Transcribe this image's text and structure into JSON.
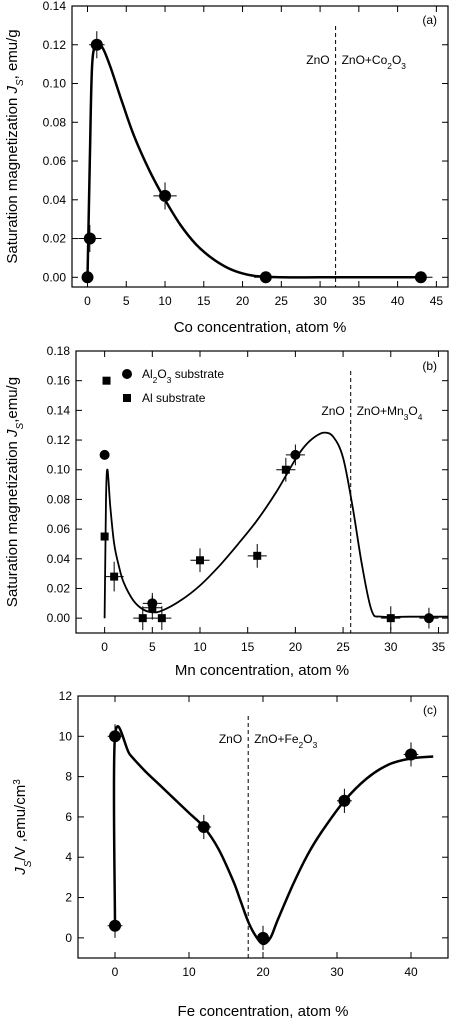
{
  "chart_data": [
    {
      "panel_label": "(a)",
      "type": "scatter",
      "xlabel": "Co concentration, atom %",
      "ylabel": {
        "main": "Saturation magnetization ",
        "sym": "J",
        "sub": "S",
        "tail": ", emu/g"
      },
      "xlim": [
        -2,
        46.5
      ],
      "ylim": [
        -0.005,
        0.14
      ],
      "xticks": [
        0,
        5,
        10,
        15,
        20,
        25,
        30,
        35,
        40,
        45
      ],
      "yticks": [
        "0.00",
        "0.02",
        "0.04",
        "0.06",
        "0.08",
        "0.10",
        "0.12",
        "0.14"
      ],
      "ytick_values": [
        0,
        0.02,
        0.04,
        0.06,
        0.08,
        0.1,
        0.12,
        0.14
      ],
      "divider_x": 32,
      "phase_left": "ZnO",
      "phase_right": {
        "main": "ZnO+Co",
        "sub1": "2",
        "mid": "O",
        "sub2": "3"
      },
      "series": [
        {
          "marker": "circle",
          "x": [
            0,
            0.3,
            1.2,
            10,
            23,
            43
          ],
          "y": [
            0.0,
            0.02,
            0.12,
            0.042,
            0.0,
            0.0
          ],
          "xerr": [
            0,
            1.5,
            1,
            1.5,
            1.5,
            1.5
          ],
          "yerr": [
            0,
            0.007,
            0.007,
            0.007,
            0,
            0
          ]
        }
      ],
      "fit_curve": {
        "x": [
          0,
          0.3,
          0.6,
          1.2,
          2,
          3,
          4.5,
          6,
          8,
          10,
          12,
          14,
          16,
          18,
          20,
          22,
          25,
          30,
          35,
          40,
          43
        ],
        "y": [
          0.0,
          0.06,
          0.11,
          0.12,
          0.118,
          0.108,
          0.09,
          0.073,
          0.055,
          0.04,
          0.027,
          0.017,
          0.01,
          0.005,
          0.002,
          0.0005,
          0.0,
          0.0,
          0.0,
          0.0,
          0.0
        ]
      }
    },
    {
      "panel_label": "(b)",
      "type": "scatter",
      "xlabel": "Mn concentration, atom %",
      "ylabel": {
        "main": "Saturation magnetization ",
        "sym": "J",
        "sub": "S",
        "tail": ",emu/g"
      },
      "xlim": [
        -3,
        36
      ],
      "ylim": [
        -0.01,
        0.18
      ],
      "xticks": [
        0,
        5,
        10,
        15,
        20,
        25,
        30,
        35
      ],
      "yticks": [
        "0.00",
        "0.02",
        "0.04",
        "0.06",
        "0.08",
        "0.10",
        "0.12",
        "0.14",
        "0.16",
        "0.18"
      ],
      "ytick_values": [
        0,
        0.02,
        0.04,
        0.06,
        0.08,
        0.1,
        0.12,
        0.14,
        0.16,
        0.18
      ],
      "divider_x": 25.8,
      "phase_left": "ZnO",
      "phase_right": {
        "main": "ZnO+Mn",
        "sub1": "3",
        "mid": "O",
        "sub2": "4"
      },
      "legend": [
        {
          "marker": "circle",
          "main": "Al",
          "sub1": "2",
          "mid": "O",
          "sub2": "3",
          "tail": " substrate"
        },
        {
          "marker": "square",
          "main": "Al substrate",
          "sub1": "",
          "mid": "",
          "sub2": "",
          "tail": ""
        }
      ],
      "series": [
        {
          "marker": "circle",
          "x": [
            0,
            5,
            20,
            34
          ],
          "y": [
            0.11,
            0.01,
            0.11,
            0.0
          ],
          "xerr": [
            0,
            1,
            1,
            1
          ],
          "yerr": [
            0,
            0.007,
            0.007,
            0.007
          ]
        },
        {
          "marker": "square",
          "x": [
            0,
            0.2,
            1,
            4,
            5,
            6,
            10,
            16,
            19,
            30
          ],
          "y": [
            0.055,
            0.16,
            0.028,
            0.0,
            0.007,
            0.0,
            0.039,
            0.042,
            0.1,
            0.0
          ],
          "xerr": [
            0,
            0,
            1,
            1,
            1,
            1,
            1,
            1,
            1,
            1
          ],
          "yerr": [
            0,
            0,
            0.01,
            0.008,
            0.008,
            0.008,
            0.008,
            0.008,
            0.008,
            0.008
          ]
        }
      ],
      "fit_curve": {
        "x": [
          0,
          0.15,
          0.3,
          0.6,
          1,
          1.5,
          2,
          3,
          4,
          5,
          6,
          8,
          10,
          12,
          14,
          16,
          18,
          20,
          21,
          22,
          23,
          24,
          25,
          26,
          27,
          28,
          29,
          32,
          36
        ],
        "y": [
          0.0,
          0.08,
          0.1,
          0.075,
          0.05,
          0.035,
          0.024,
          0.012,
          0.006,
          0.004,
          0.005,
          0.012,
          0.022,
          0.035,
          0.05,
          0.066,
          0.085,
          0.107,
          0.116,
          0.122,
          0.125,
          0.122,
          0.108,
          0.075,
          0.035,
          0.005,
          0.001,
          0.001,
          0.001
        ]
      }
    },
    {
      "panel_label": "(c)",
      "type": "scatter",
      "xlabel": "Fe concentration, atom %",
      "ylabel": {
        "main": "",
        "sym": "J",
        "sub": "S",
        "tail": "/V ,emu/cm",
        "sup": "3"
      },
      "xlim": [
        -5,
        45
      ],
      "ylim": [
        -1,
        12
      ],
      "xticks": [
        0,
        10,
        20,
        30,
        40
      ],
      "yticks": [
        "0",
        "2",
        "4",
        "6",
        "8",
        "10",
        "12"
      ],
      "ytick_values": [
        0,
        2,
        4,
        6,
        8,
        10,
        12
      ],
      "divider_x": 18,
      "phase_left": "ZnO",
      "phase_right": {
        "main": "ZnO+Fe",
        "sub1": "2",
        "mid": "O",
        "sub2": "3"
      },
      "series": [
        {
          "marker": "circle",
          "x": [
            0,
            0,
            12,
            20,
            31,
            40
          ],
          "y": [
            0.6,
            10,
            5.5,
            0.0,
            6.8,
            9.1
          ],
          "xerr": [
            1,
            1,
            1,
            1,
            1,
            1
          ],
          "yerr": [
            0.6,
            0.6,
            0.6,
            0.6,
            0.6,
            0.6
          ]
        }
      ],
      "fit_curve": {
        "x": [
          0,
          0,
          2,
          4,
          6,
          8,
          10,
          12,
          14,
          16,
          17,
          18,
          19,
          20,
          21,
          22,
          24,
          26,
          28,
          31,
          34,
          37,
          40,
          43
        ],
        "y": [
          0.6,
          10,
          9.1,
          8.3,
          7.6,
          6.9,
          6.2,
          5.5,
          4.4,
          2.8,
          1.8,
          0.8,
          0.1,
          -0.3,
          0.0,
          0.9,
          2.6,
          4.1,
          5.3,
          6.8,
          7.9,
          8.6,
          8.9,
          9.0
        ]
      }
    }
  ]
}
